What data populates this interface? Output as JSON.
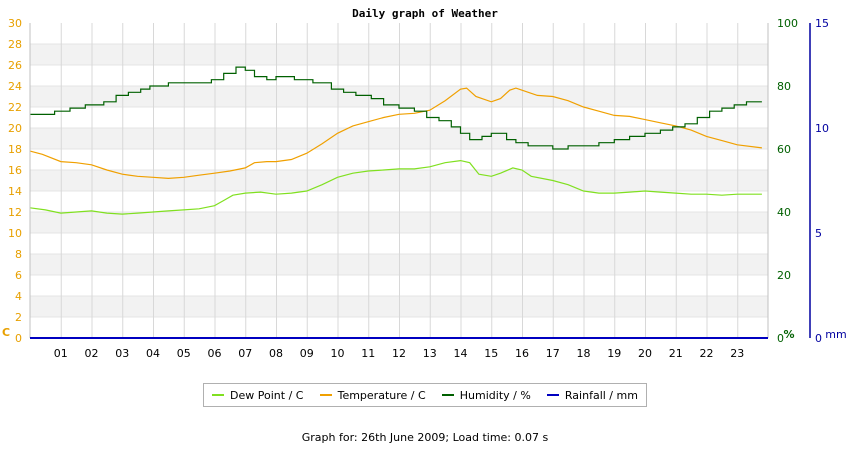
{
  "chart_data": {
    "type": "line",
    "title": "Daily graph of Weather",
    "x_ticks": [
      "01",
      "02",
      "03",
      "04",
      "05",
      "06",
      "07",
      "08",
      "09",
      "10",
      "11",
      "12",
      "13",
      "14",
      "15",
      "16",
      "17",
      "18",
      "19",
      "20",
      "21",
      "22",
      "23"
    ],
    "x_range": [
      0,
      24
    ],
    "grid": true,
    "axes": {
      "left": {
        "unit_label": "C",
        "range": [
          0,
          30
        ],
        "ticks": [
          0,
          2,
          4,
          6,
          8,
          10,
          12,
          14,
          16,
          18,
          20,
          22,
          24,
          26,
          28,
          30
        ],
        "color": "#e8a000"
      },
      "right1": {
        "unit_label": "%",
        "range": [
          0,
          100
        ],
        "ticks": [
          0,
          20,
          40,
          60,
          80,
          100
        ],
        "color": "#006000"
      },
      "right2": {
        "unit_label": "mm",
        "range": [
          0,
          15
        ],
        "ticks": [
          0,
          5,
          10,
          15
        ],
        "color": "#0000a0"
      }
    },
    "series": [
      {
        "name": "Dew Point / C",
        "axis": "left",
        "color": "#80e020",
        "step": false,
        "points": [
          [
            0,
            12.4
          ],
          [
            0.5,
            12.2
          ],
          [
            1,
            11.9
          ],
          [
            1.5,
            12.0
          ],
          [
            2,
            12.1
          ],
          [
            2.5,
            11.9
          ],
          [
            3,
            11.8
          ],
          [
            3.5,
            11.9
          ],
          [
            4,
            12.0
          ],
          [
            4.5,
            12.1
          ],
          [
            5,
            12.2
          ],
          [
            5.5,
            12.3
          ],
          [
            6,
            12.6
          ],
          [
            6.3,
            13.1
          ],
          [
            6.6,
            13.6
          ],
          [
            7,
            13.8
          ],
          [
            7.5,
            13.9
          ],
          [
            8,
            13.7
          ],
          [
            8.5,
            13.8
          ],
          [
            9,
            14.0
          ],
          [
            9.5,
            14.6
          ],
          [
            10,
            15.3
          ],
          [
            10.5,
            15.7
          ],
          [
            11,
            15.9
          ],
          [
            11.5,
            16.0
          ],
          [
            12,
            16.1
          ],
          [
            12.5,
            16.1
          ],
          [
            13,
            16.3
          ],
          [
            13.5,
            16.7
          ],
          [
            14,
            16.9
          ],
          [
            14.3,
            16.7
          ],
          [
            14.6,
            15.6
          ],
          [
            15,
            15.4
          ],
          [
            15.3,
            15.7
          ],
          [
            15.7,
            16.2
          ],
          [
            16,
            16.0
          ],
          [
            16.3,
            15.4
          ],
          [
            17,
            15.0
          ],
          [
            17.5,
            14.6
          ],
          [
            18,
            14.0
          ],
          [
            18.5,
            13.8
          ],
          [
            19,
            13.8
          ],
          [
            19.5,
            13.9
          ],
          [
            20,
            14.0
          ],
          [
            20.5,
            13.9
          ],
          [
            21,
            13.8
          ],
          [
            21.5,
            13.7
          ],
          [
            22,
            13.7
          ],
          [
            22.5,
            13.6
          ],
          [
            23,
            13.7
          ],
          [
            23.8,
            13.7
          ]
        ]
      },
      {
        "name": "Temperature / C",
        "axis": "left",
        "color": "#f0a000",
        "step": false,
        "points": [
          [
            0,
            17.8
          ],
          [
            0.4,
            17.5
          ],
          [
            1,
            16.8
          ],
          [
            1.5,
            16.7
          ],
          [
            2,
            16.5
          ],
          [
            2.5,
            16.0
          ],
          [
            3,
            15.6
          ],
          [
            3.5,
            15.4
          ],
          [
            4,
            15.3
          ],
          [
            4.5,
            15.2
          ],
          [
            5,
            15.3
          ],
          [
            5.5,
            15.5
          ],
          [
            6,
            15.7
          ],
          [
            6.5,
            15.9
          ],
          [
            7,
            16.2
          ],
          [
            7.3,
            16.7
          ],
          [
            7.7,
            16.8
          ],
          [
            8,
            16.8
          ],
          [
            8.5,
            17.0
          ],
          [
            9,
            17.6
          ],
          [
            9.5,
            18.5
          ],
          [
            10,
            19.5
          ],
          [
            10.5,
            20.2
          ],
          [
            11,
            20.6
          ],
          [
            11.5,
            21.0
          ],
          [
            12,
            21.3
          ],
          [
            12.5,
            21.4
          ],
          [
            13,
            21.7
          ],
          [
            13.5,
            22.6
          ],
          [
            14,
            23.7
          ],
          [
            14.2,
            23.8
          ],
          [
            14.5,
            23.0
          ],
          [
            15,
            22.5
          ],
          [
            15.3,
            22.8
          ],
          [
            15.6,
            23.6
          ],
          [
            15.8,
            23.8
          ],
          [
            16,
            23.6
          ],
          [
            16.5,
            23.1
          ],
          [
            17,
            23.0
          ],
          [
            17.5,
            22.6
          ],
          [
            18,
            22.0
          ],
          [
            18.5,
            21.6
          ],
          [
            19,
            21.2
          ],
          [
            19.5,
            21.1
          ],
          [
            20,
            20.8
          ],
          [
            20.5,
            20.5
          ],
          [
            21,
            20.2
          ],
          [
            21.5,
            19.8
          ],
          [
            22,
            19.2
          ],
          [
            22.5,
            18.8
          ],
          [
            23,
            18.4
          ],
          [
            23.8,
            18.1
          ]
        ]
      },
      {
        "name": "Humidity / %",
        "axis": "right1",
        "color": "#006000",
        "step": true,
        "points": [
          [
            0,
            71
          ],
          [
            0.8,
            72
          ],
          [
            1.3,
            73
          ],
          [
            1.8,
            74
          ],
          [
            2.4,
            75
          ],
          [
            2.8,
            77
          ],
          [
            3.2,
            78
          ],
          [
            3.6,
            79
          ],
          [
            3.9,
            80
          ],
          [
            4.5,
            81
          ],
          [
            5.3,
            81
          ],
          [
            5.9,
            82
          ],
          [
            6.3,
            84
          ],
          [
            6.7,
            86
          ],
          [
            7,
            85
          ],
          [
            7.3,
            83
          ],
          [
            7.7,
            82
          ],
          [
            8,
            83
          ],
          [
            8.6,
            82
          ],
          [
            9.2,
            81
          ],
          [
            9.8,
            79
          ],
          [
            10.2,
            78
          ],
          [
            10.6,
            77
          ],
          [
            11.1,
            76
          ],
          [
            11.5,
            74
          ],
          [
            12,
            73
          ],
          [
            12.5,
            72
          ],
          [
            12.9,
            70
          ],
          [
            13.3,
            69
          ],
          [
            13.7,
            67
          ],
          [
            14,
            65
          ],
          [
            14.3,
            63
          ],
          [
            14.7,
            64
          ],
          [
            15,
            65
          ],
          [
            15.5,
            63
          ],
          [
            15.8,
            62
          ],
          [
            16.2,
            61
          ],
          [
            17,
            60
          ],
          [
            17.5,
            61
          ],
          [
            18,
            61
          ],
          [
            18.5,
            62
          ],
          [
            19,
            63
          ],
          [
            19.5,
            64
          ],
          [
            20,
            65
          ],
          [
            20.5,
            66
          ],
          [
            20.9,
            67
          ],
          [
            21.3,
            68
          ],
          [
            21.7,
            70
          ],
          [
            22.1,
            72
          ],
          [
            22.5,
            73
          ],
          [
            22.9,
            74
          ],
          [
            23.3,
            75
          ],
          [
            23.8,
            75
          ]
        ]
      },
      {
        "name": "Rainfall / mm",
        "axis": "right2",
        "color": "#0000c0",
        "step": false,
        "points": [
          [
            0,
            0
          ],
          [
            23.8,
            0
          ]
        ]
      }
    ]
  },
  "footer": "Graph for: 26th June 2009; Load time: 0.07 s"
}
